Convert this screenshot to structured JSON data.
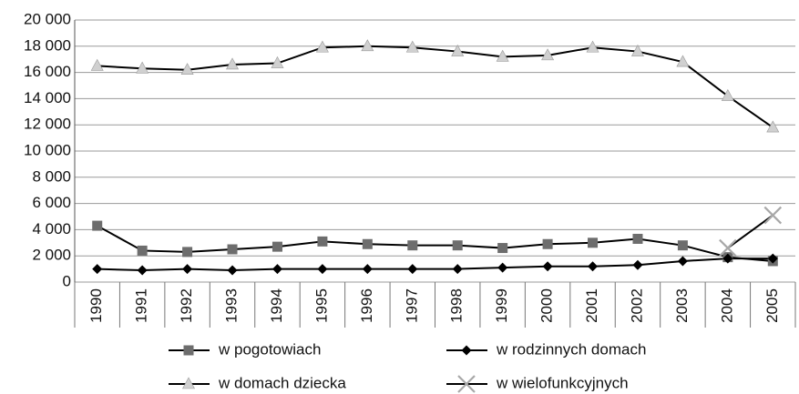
{
  "chart_data": {
    "type": "line",
    "categories": [
      "1990",
      "1991",
      "1992",
      "1993",
      "1994",
      "1995",
      "1996",
      "1997",
      "1998",
      "1999",
      "2000",
      "2001",
      "2002",
      "2003",
      "2004",
      "2005"
    ],
    "line_color": "#000000",
    "series": [
      {
        "name": "w pogotowiach",
        "color": "#6d6d6d",
        "marker": "square",
        "values": [
          4300,
          2400,
          2300,
          2500,
          2700,
          3100,
          2900,
          2800,
          2800,
          2600,
          2900,
          3000,
          3300,
          2800,
          1900,
          1600
        ]
      },
      {
        "name": "w rodzinnych domach",
        "color": "#000000",
        "marker": "diamond",
        "values": [
          1000,
          900,
          1000,
          900,
          1000,
          1000,
          1000,
          1000,
          1000,
          1100,
          1200,
          1200,
          1300,
          1600,
          1800,
          1800
        ]
      },
      {
        "name": "w domach dziecka",
        "color": "#d0d0d0",
        "marker": "triangle",
        "values": [
          16500,
          16300,
          16200,
          16600,
          16700,
          17900,
          18000,
          17900,
          17600,
          17200,
          17300,
          17900,
          17600,
          16800,
          14200,
          11800
        ]
      },
      {
        "name": "w wielofunkcyjnych",
        "color": "#a8a8a8",
        "marker": "x",
        "values": [
          null,
          null,
          null,
          null,
          null,
          null,
          null,
          null,
          null,
          null,
          null,
          null,
          null,
          null,
          2600,
          5100
        ]
      }
    ],
    "ylim": [
      0,
      20000
    ],
    "yticks": [
      0,
      {
        "value": 2000,
        "label": "2 000"
      },
      {
        "value": 4000,
        "label": "4 000"
      },
      {
        "value": 6000,
        "label": "6 000"
      },
      {
        "value": 8000,
        "label": "8 000"
      },
      {
        "value": 10000,
        "label": "10 000"
      },
      {
        "value": 12000,
        "label": "12 000"
      },
      {
        "value": 14000,
        "label": "14 000"
      },
      {
        "value": 16000,
        "label": "16 000"
      },
      {
        "value": 18000,
        "label": "18 000"
      },
      {
        "value": 20000,
        "label": "20 000"
      }
    ],
    "grid": true
  }
}
